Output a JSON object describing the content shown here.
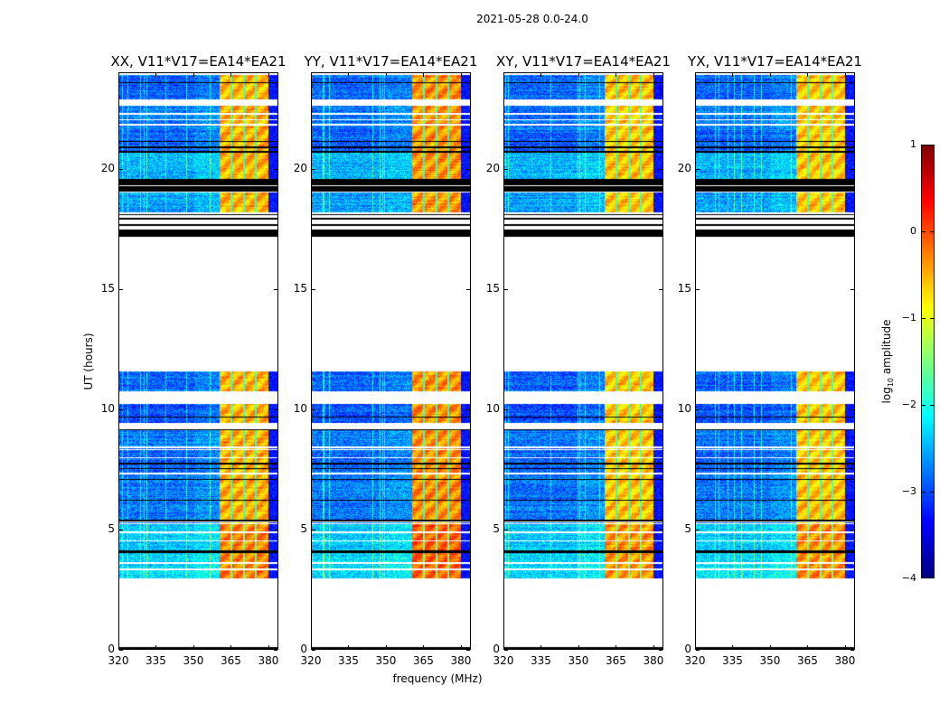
{
  "suptitle": "2021-05-28 0.0-24.0",
  "colors": {
    "background": "#ffffff",
    "flagged": "#000000",
    "axis": "#000000"
  },
  "chart_data": {
    "type": "heatmap",
    "colormap": "jet",
    "xlabel": "frequency (MHz)",
    "ylabel": "UT (hours)",
    "xlim": [
      320,
      384
    ],
    "ylim": [
      0,
      24
    ],
    "xticks": [
      320,
      335,
      350,
      365,
      380
    ],
    "yticks": [
      0,
      5,
      10,
      15,
      20
    ],
    "colorbar": {
      "label_main": "log",
      "label_sub": "10",
      "label_rest": " amplitude",
      "range": [
        -4,
        1
      ],
      "ticks": [
        1,
        0,
        -1,
        -2,
        -3,
        -4
      ]
    },
    "panels": [
      {
        "title": "XX, V11*V17=EA14*EA21",
        "seed": 11,
        "bright_level": -0.5
      },
      {
        "title": "YY, V11*V17=EA14*EA21",
        "seed": 23,
        "bright_level": -0.35
      },
      {
        "title": "XY, V11*V17=EA14*EA21",
        "seed": 37,
        "bright_level": -0.6
      },
      {
        "title": "YX, V11*V17=EA14*EA21",
        "seed": 53,
        "bright_level": -0.6
      }
    ],
    "bright_band_mhz": [
      360.5,
      380
    ],
    "band_dividers_mhz": [
      365.2,
      370.2,
      375.2
    ],
    "background_level": -2.8,
    "edge_band": {
      "range_mhz": [
        380,
        384
      ],
      "level": -3.3
    },
    "data_segments_hours": [
      [
        2.94,
        4.0,
        -2.3
      ],
      [
        4.12,
        5.2,
        -2.4
      ],
      [
        5.25,
        7.4,
        -2.8
      ],
      [
        7.4,
        8.4,
        -2.9
      ],
      [
        8.45,
        9.12,
        -2.8
      ],
      [
        9.45,
        10.24,
        -3.0
      ],
      [
        10.74,
        11.6,
        -2.9
      ],
      [
        18.22,
        19.03,
        -2.6
      ],
      [
        19.6,
        20.72,
        -2.5
      ],
      [
        20.79,
        21.66,
        -2.9
      ],
      [
        21.66,
        22.66,
        -2.8
      ],
      [
        22.94,
        23.94,
        -2.9
      ]
    ],
    "white_gaps_hours": [
      [
        3.3,
        3.38
      ],
      [
        3.55,
        3.62
      ],
      [
        4.5,
        4.55
      ],
      [
        4.85,
        4.9
      ],
      [
        5.3,
        5.35
      ],
      [
        7.3,
        7.35
      ],
      [
        7.95,
        8.0
      ],
      [
        8.3,
        8.35
      ],
      [
        9.35,
        9.43
      ],
      [
        22.3,
        22.36
      ],
      [
        22.05,
        22.1
      ],
      [
        21.85,
        21.9
      ],
      [
        19.3,
        19.35
      ],
      [
        18.0,
        18.06
      ],
      [
        17.8,
        17.86
      ],
      [
        17.6,
        17.66
      ]
    ],
    "flagged_hours": [
      [
        0.0,
        0.08
      ],
      [
        4.0,
        4.12
      ],
      [
        5.35,
        5.4
      ],
      [
        6.2,
        6.25
      ],
      [
        7.05,
        7.1
      ],
      [
        7.5,
        7.55
      ],
      [
        7.7,
        7.78
      ],
      [
        9.65,
        9.72
      ],
      [
        9.12,
        9.17
      ],
      [
        17.2,
        17.5
      ],
      [
        17.66,
        17.72
      ],
      [
        17.9,
        17.98
      ],
      [
        18.1,
        18.16
      ],
      [
        19.08,
        19.3
      ],
      [
        19.35,
        19.6
      ],
      [
        20.72,
        20.79
      ],
      [
        20.9,
        20.95
      ],
      [
        21.15,
        21.2
      ],
      [
        23.6,
        23.66
      ]
    ]
  }
}
